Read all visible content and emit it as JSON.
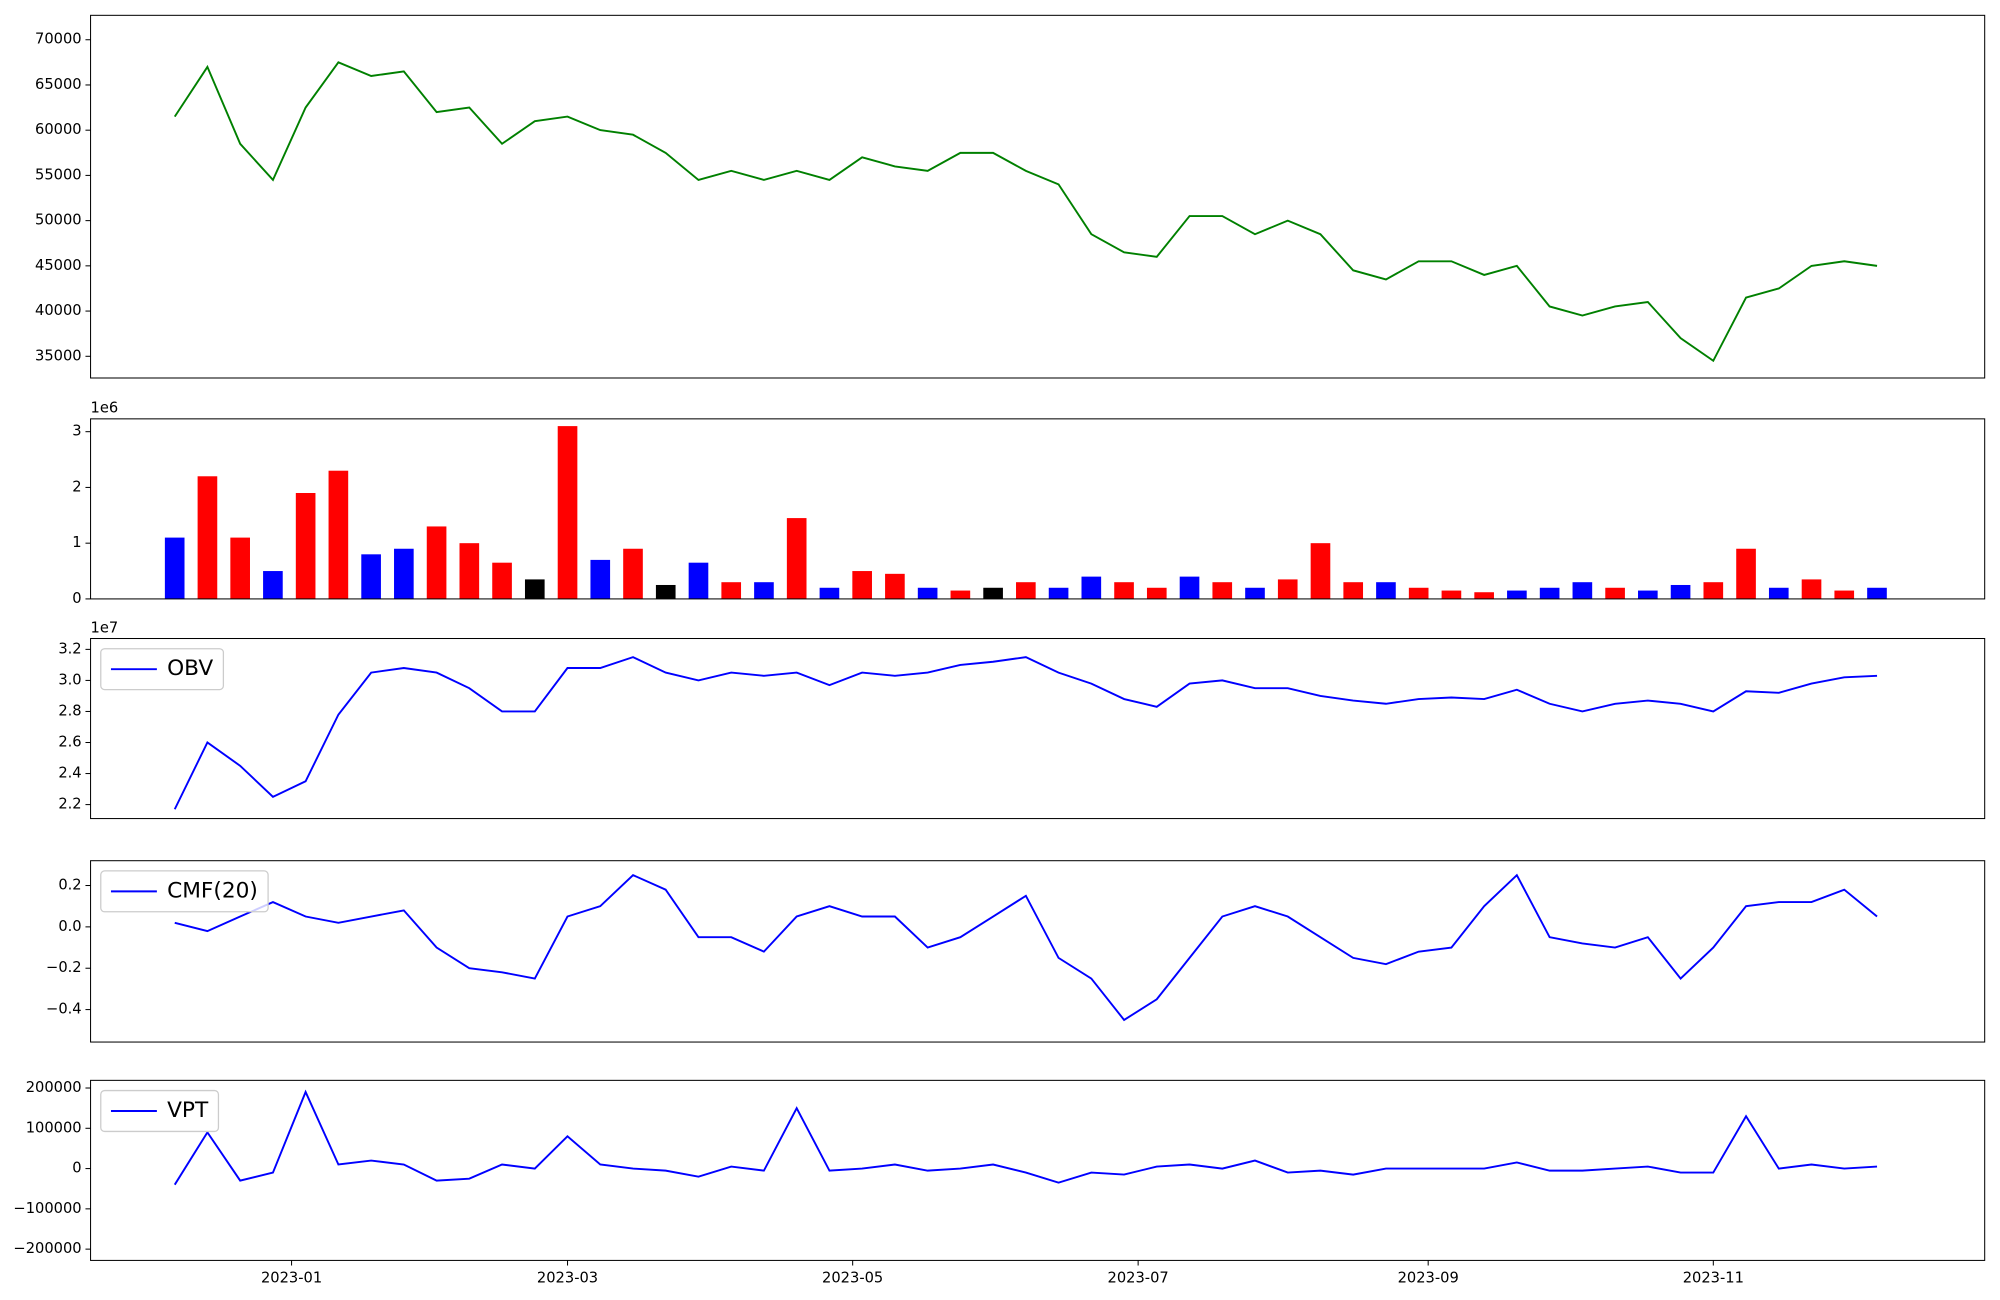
{
  "chart_data": [
    {
      "type": "line",
      "color": "green",
      "xlim": [
        -2.57,
        55.29
      ],
      "ylim": [
        32600,
        72700
      ],
      "yticks": [
        35000,
        40000,
        45000,
        50000,
        55000,
        60000,
        65000,
        70000
      ],
      "values": [
        61500,
        67000,
        58500,
        54500,
        62500,
        67500,
        66000,
        66500,
        62000,
        62500,
        58500,
        61000,
        61500,
        60000,
        59500,
        57500,
        54500,
        55500,
        54500,
        55500,
        54500,
        57000,
        56000,
        55500,
        57500,
        57500,
        55500,
        54000,
        48500,
        46500,
        46000,
        50500,
        50500,
        48500,
        50000,
        48500,
        44500,
        43500,
        45500,
        45500,
        44000,
        45000,
        40500,
        39500,
        40500,
        41000,
        37000,
        34500,
        41500,
        42500,
        45000,
        45500,
        45000
      ]
    },
    {
      "type": "bar",
      "offset_label": "1e6",
      "xlim": [
        -2.57,
        55.29
      ],
      "ylim": [
        0,
        3230000
      ],
      "yticks": [
        {
          "value": 0,
          "label": "0"
        },
        {
          "value": 1000000,
          "label": "1"
        },
        {
          "value": 2000000,
          "label": "2"
        },
        {
          "value": 3000000,
          "label": "3"
        }
      ],
      "values": [
        1100000,
        2200000,
        1100000,
        500000,
        1900000,
        2300000,
        800000,
        900000,
        1300000,
        1000000,
        650000,
        350000,
        3100000,
        700000,
        900000,
        250000,
        650000,
        300000,
        300000,
        1450000,
        200000,
        500000,
        450000,
        200000,
        150000,
        200000,
        300000,
        200000,
        400000,
        300000,
        200000,
        400000,
        300000,
        200000,
        350000,
        1000000,
        300000,
        300000,
        200000,
        150000,
        120000,
        150000,
        200000,
        300000,
        200000,
        150000,
        250000,
        300000,
        900000,
        200000,
        350000,
        150000,
        200000
      ],
      "colors": [
        "blue",
        "red",
        "red",
        "blue",
        "red",
        "red",
        "blue",
        "blue",
        "red",
        "red",
        "red",
        "black",
        "red",
        "blue",
        "red",
        "black",
        "blue",
        "red",
        "blue",
        "red",
        "blue",
        "red",
        "red",
        "blue",
        "red",
        "black",
        "red",
        "blue",
        "blue",
        "red",
        "red",
        "blue",
        "red",
        "blue",
        "red",
        "red",
        "red",
        "blue",
        "red",
        "red",
        "red",
        "blue",
        "blue",
        "blue",
        "red",
        "blue",
        "blue",
        "red",
        "red",
        "blue",
        "red",
        "red",
        "blue"
      ]
    },
    {
      "type": "line",
      "offset_label": "1e7",
      "legend": "upper left",
      "xlim": [
        -2.57,
        55.29
      ],
      "ylim": [
        21100000,
        32700000
      ],
      "yticks": [
        {
          "value": 22000000,
          "label": "2.2"
        },
        {
          "value": 24000000,
          "label": "2.4"
        },
        {
          "value": 26000000,
          "label": "2.6"
        },
        {
          "value": 28000000,
          "label": "2.8"
        },
        {
          "value": 30000000,
          "label": "3.0"
        },
        {
          "value": 32000000,
          "label": "3.2"
        }
      ],
      "series": [
        {
          "name": "OBV",
          "color": "blue",
          "values": [
            21700000,
            26000000,
            24500000,
            22500000,
            23500000,
            27800000,
            30500000,
            30800000,
            30500000,
            29500000,
            28000000,
            28000000,
            30800000,
            30800000,
            31500000,
            30500000,
            30000000,
            30500000,
            30300000,
            30500000,
            29700000,
            30500000,
            30300000,
            30500000,
            31000000,
            31200000,
            31500000,
            30500000,
            29800000,
            28800000,
            28300000,
            29800000,
            30000000,
            29500000,
            29500000,
            29000000,
            28700000,
            28500000,
            28800000,
            28900000,
            28800000,
            29400000,
            28500000,
            28000000,
            28500000,
            28700000,
            28500000,
            28000000,
            29300000,
            29200000,
            29800000,
            30200000,
            30300000
          ]
        }
      ]
    },
    {
      "type": "line",
      "legend": "upper left",
      "xlim": [
        -2.57,
        55.29
      ],
      "ylim": [
        -0.557,
        0.32
      ],
      "yticks": [
        {
          "value": -0.4,
          "label": "−0.4"
        },
        {
          "value": -0.2,
          "label": "−0.2"
        },
        {
          "value": 0,
          "label": "0.0"
        },
        0.2
      ],
      "series": [
        {
          "name": "CMF(20)",
          "color": "blue",
          "values": [
            0.02,
            -0.02,
            0.05,
            0.12,
            0.05,
            0.02,
            0.05,
            0.08,
            -0.1,
            -0.2,
            -0.22,
            -0.25,
            0.05,
            0.1,
            0.25,
            0.18,
            -0.05,
            -0.05,
            -0.12,
            0.05,
            0.1,
            0.05,
            0.05,
            -0.1,
            -0.05,
            0.05,
            0.15,
            -0.15,
            -0.25,
            -0.45,
            -0.35,
            -0.15,
            0.05,
            0.1,
            0.05,
            -0.05,
            -0.15,
            -0.18,
            -0.12,
            -0.1,
            0.1,
            0.25,
            -0.05,
            -0.08,
            -0.1,
            -0.05,
            -0.25,
            -0.1,
            0.1,
            0.12,
            0.12,
            0.18,
            0.05
          ]
        }
      ]
    },
    {
      "type": "line",
      "legend": "upper left",
      "xlim": [
        -2.57,
        55.29
      ],
      "ylim": [
        -228000,
        219000
      ],
      "yticks": [
        {
          "value": -200000,
          "label": "−200000"
        },
        {
          "value": -100000,
          "label": "−100000"
        },
        0,
        100000,
        200000
      ],
      "xticks": [
        {
          "value": 3.57,
          "label": "2023-01"
        },
        {
          "value": 12.0,
          "label": "2023-03"
        },
        {
          "value": 20.71,
          "label": "2023-05"
        },
        {
          "value": 29.43,
          "label": "2023-07"
        },
        {
          "value": 38.29,
          "label": "2023-09"
        },
        {
          "value": 47.0,
          "label": "2023-11"
        }
      ],
      "series": [
        {
          "name": "VPT",
          "color": "blue",
          "values": [
            -40000,
            90000,
            -30000,
            -10000,
            190000,
            10000,
            20000,
            10000,
            -30000,
            -25000,
            10000,
            0,
            80000,
            10000,
            0,
            -5000,
            -20000,
            5000,
            -5000,
            150000,
            -5000,
            0,
            10000,
            -5000,
            0,
            10000,
            -10000,
            -35000,
            -10000,
            -15000,
            5000,
            10000,
            0,
            20000,
            -10000,
            -5000,
            -15000,
            0,
            0,
            0,
            0,
            15000,
            -5000,
            -5000,
            0,
            5000,
            -10000,
            -10000,
            130000,
            0,
            10000,
            0,
            5000
          ]
        }
      ]
    }
  ]
}
